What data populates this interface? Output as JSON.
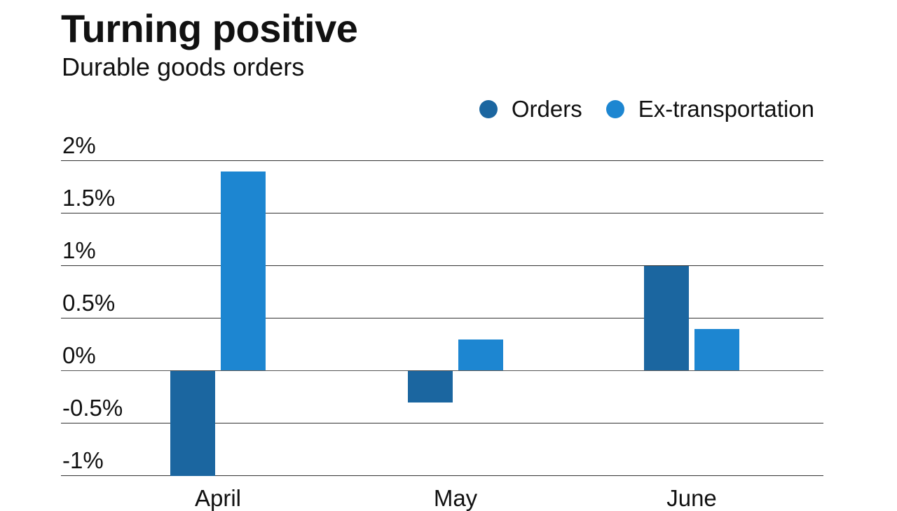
{
  "title": "Turning positive",
  "subtitle": "Durable goods orders",
  "legend": [
    {
      "label": "Orders",
      "color": "#1b66a0"
    },
    {
      "label": "Ex-transportation",
      "color": "#1d86d1"
    }
  ],
  "y_ticks": [
    "2%",
    "1.5%",
    "1%",
    "0.5%",
    "0%",
    "-0.5%",
    "-1%"
  ],
  "x_labels": [
    "April",
    "May",
    "June"
  ],
  "chart_data": {
    "type": "bar",
    "title": "Turning positive",
    "subtitle": "Durable goods orders",
    "xlabel": "",
    "ylabel": "",
    "categories": [
      "April",
      "May",
      "June"
    ],
    "series": [
      {
        "name": "Orders",
        "color": "#1b66a0",
        "values": [
          -1.0,
          -0.3,
          1.0
        ]
      },
      {
        "name": "Ex-transportation",
        "color": "#1d86d1",
        "values": [
          1.9,
          0.3,
          0.4
        ]
      }
    ],
    "ylim": [
      -1,
      2
    ],
    "yticks": [
      -1,
      -0.5,
      0,
      0.5,
      1,
      1.5,
      2
    ],
    "ytick_labels": [
      "-1%",
      "-0.5%",
      "0%",
      "0.5%",
      "1%",
      "1.5%",
      "2%"
    ],
    "grid": true,
    "legend_position": "top-right"
  }
}
